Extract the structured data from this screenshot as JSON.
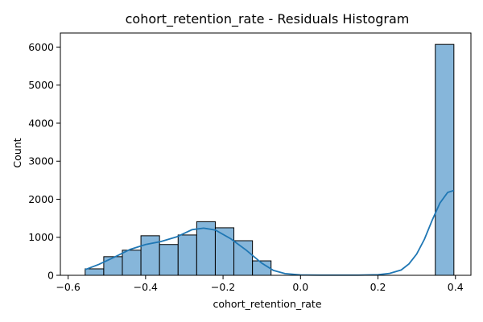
{
  "chart_data": {
    "type": "bar",
    "title": "cohort_retention_rate - Residuals Histogram",
    "xlabel": "cohort_retention_rate",
    "ylabel": "Count",
    "xlim": [
      -0.62,
      0.44
    ],
    "ylim": [
      0,
      6370
    ],
    "x_ticks": [
      -0.6,
      -0.4,
      -0.2,
      0.0,
      0.2,
      0.4
    ],
    "x_tick_labels": [
      "−0.6",
      "−0.4",
      "−0.2",
      "0.0",
      "0.2",
      "0.4"
    ],
    "y_ticks": [
      0,
      1000,
      2000,
      3000,
      4000,
      5000,
      6000
    ],
    "y_tick_labels": [
      "0",
      "1000",
      "2000",
      "3000",
      "4000",
      "5000",
      "6000"
    ],
    "grid": false,
    "colors": {
      "bar": "#86b6da",
      "edge": "#000000",
      "kde": "#1f77b4"
    },
    "bins": [
      {
        "x0": -0.556,
        "x1": -0.508,
        "count": 170
      },
      {
        "x0": -0.508,
        "x1": -0.46,
        "count": 490
      },
      {
        "x0": -0.46,
        "x1": -0.412,
        "count": 660
      },
      {
        "x0": -0.412,
        "x1": -0.364,
        "count": 1040
      },
      {
        "x0": -0.364,
        "x1": -0.316,
        "count": 810
      },
      {
        "x0": -0.316,
        "x1": -0.268,
        "count": 1060
      },
      {
        "x0": -0.268,
        "x1": -0.22,
        "count": 1410
      },
      {
        "x0": -0.22,
        "x1": -0.172,
        "count": 1250
      },
      {
        "x0": -0.172,
        "x1": -0.124,
        "count": 910
      },
      {
        "x0": -0.124,
        "x1": -0.076,
        "count": 380
      },
      {
        "x0": 0.348,
        "x1": 0.396,
        "count": 6070
      }
    ],
    "kde": {
      "x": [
        -0.556,
        -0.52,
        -0.48,
        -0.44,
        -0.4,
        -0.36,
        -0.32,
        -0.28,
        -0.25,
        -0.22,
        -0.18,
        -0.14,
        -0.1,
        -0.07,
        -0.04,
        0.0,
        0.05,
        0.1,
        0.15,
        0.2,
        0.23,
        0.26,
        0.28,
        0.3,
        0.32,
        0.34,
        0.36,
        0.38,
        0.396
      ],
      "y": [
        150,
        290,
        480,
        680,
        810,
        890,
        1010,
        1200,
        1240,
        1190,
        960,
        660,
        320,
        130,
        45,
        10,
        5,
        5,
        5,
        15,
        50,
        140,
        300,
        560,
        950,
        1450,
        1900,
        2180,
        2230
      ]
    }
  }
}
